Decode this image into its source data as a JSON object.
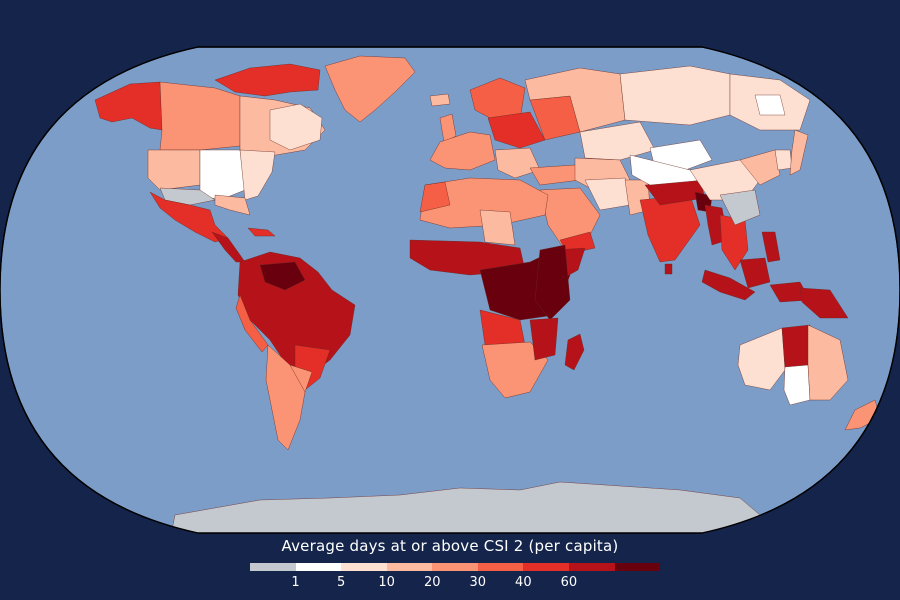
{
  "legend": {
    "title": "Average days at or above CSI 2 (per capita)",
    "colors": [
      "#c4c8cf",
      "#ffffff",
      "#fde0d2",
      "#fcbba1",
      "#fb9474",
      "#f55f45",
      "#e32f27",
      "#b51219",
      "#68000e"
    ],
    "ticks": [
      "1",
      "5",
      "10",
      "20",
      "30",
      "40",
      "60"
    ]
  },
  "map": {
    "ocean_color": "#7b9dc8",
    "no_data_color": "#c4c8cf",
    "border_color": "#000000"
  }
}
